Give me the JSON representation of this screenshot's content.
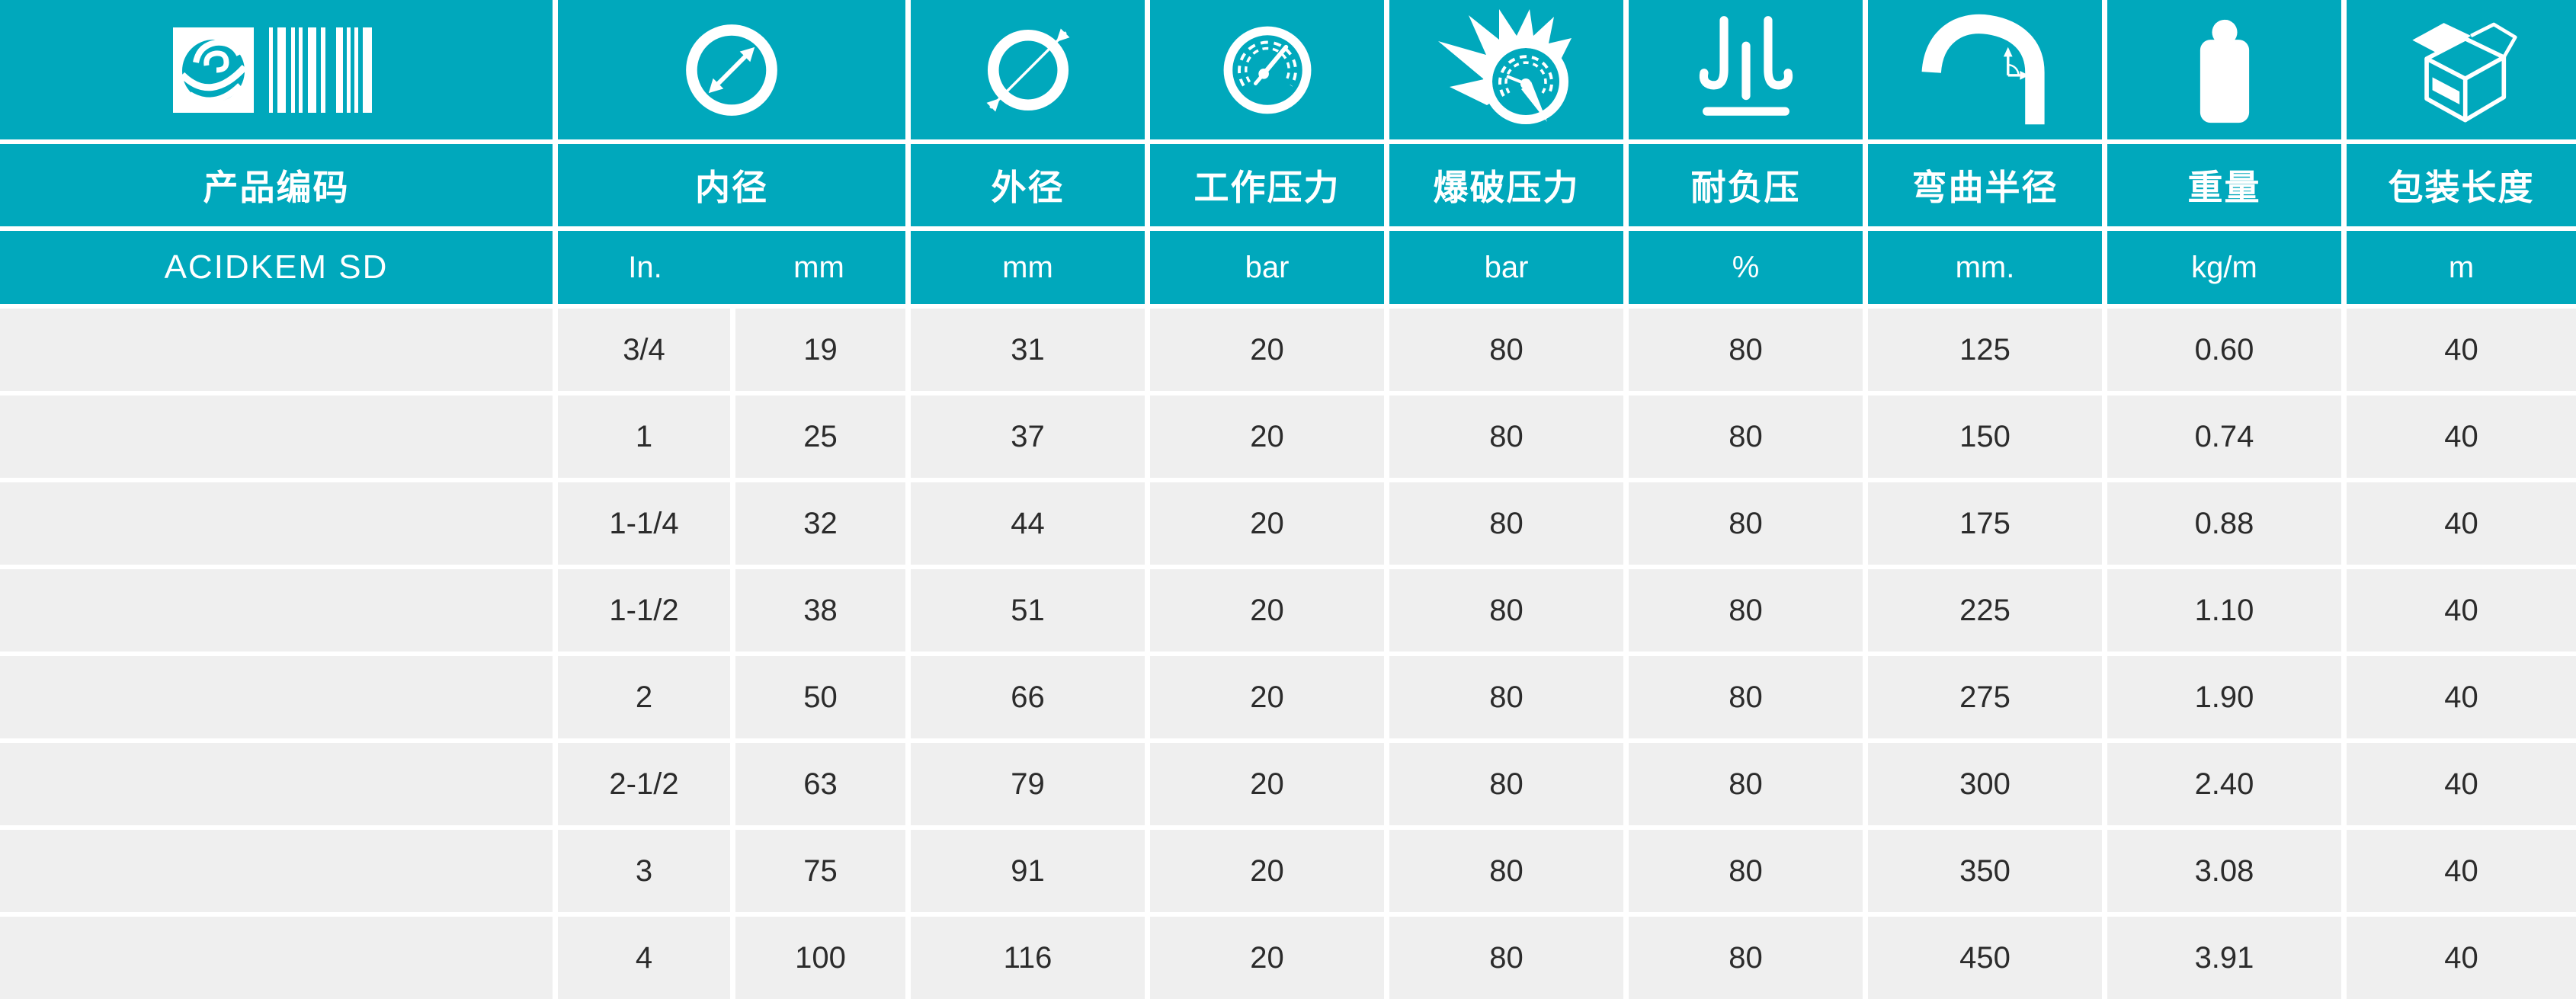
{
  "theme": {
    "teal": "#00A8BC",
    "row_gray": "#EFEFEF",
    "text_dark": "#2B2B2B",
    "text_light": "#FFFFFF"
  },
  "columns": [
    {
      "id": "product_code",
      "icon": "logo-barcode-icon",
      "header": "产品编码",
      "unit": "ACIDKEM SD"
    },
    {
      "id": "inner_diameter",
      "icon": "inner-diameter-icon",
      "header": "内径",
      "units": [
        "In.",
        "mm"
      ]
    },
    {
      "id": "outer_diameter",
      "icon": "outer-diameter-icon",
      "header": "外径",
      "unit": "mm"
    },
    {
      "id": "working_pressure",
      "icon": "working-pressure-gauge-icon",
      "header": "工作压力",
      "unit": "bar"
    },
    {
      "id": "burst_pressure",
      "icon": "burst-pressure-gauge-icon",
      "header": "爆破压力",
      "unit": "bar"
    },
    {
      "id": "vacuum_resistance",
      "icon": "vacuum-suction-icon",
      "header": "耐负压",
      "unit": "%"
    },
    {
      "id": "bend_radius",
      "icon": "bend-radius-icon",
      "header": "弯曲半径",
      "unit": "mm."
    },
    {
      "id": "weight",
      "icon": "weight-icon",
      "header": "重量",
      "unit": "kg/m"
    },
    {
      "id": "packing_length",
      "icon": "package-box-icon",
      "header": "包装长度",
      "unit": "m"
    }
  ],
  "row_keys": [
    "product_code",
    "in_inch",
    "in_mm",
    "out_mm",
    "working_bar",
    "burst_bar",
    "vacuum_pct",
    "bend_mm",
    "weight_kgm",
    "pack_m"
  ],
  "rows": [
    {
      "product_code": "",
      "in_inch": "3/4",
      "in_mm": "19",
      "out_mm": "31",
      "working_bar": "20",
      "burst_bar": "80",
      "vacuum_pct": "80",
      "bend_mm": "125",
      "weight_kgm": "0.60",
      "pack_m": "40"
    },
    {
      "product_code": "",
      "in_inch": "1",
      "in_mm": "25",
      "out_mm": "37",
      "working_bar": "20",
      "burst_bar": "80",
      "vacuum_pct": "80",
      "bend_mm": "150",
      "weight_kgm": "0.74",
      "pack_m": "40"
    },
    {
      "product_code": "",
      "in_inch": "1-1/4",
      "in_mm": "32",
      "out_mm": "44",
      "working_bar": "20",
      "burst_bar": "80",
      "vacuum_pct": "80",
      "bend_mm": "175",
      "weight_kgm": "0.88",
      "pack_m": "40"
    },
    {
      "product_code": "",
      "in_inch": "1-1/2",
      "in_mm": "38",
      "out_mm": "51",
      "working_bar": "20",
      "burst_bar": "80",
      "vacuum_pct": "80",
      "bend_mm": "225",
      "weight_kgm": "1.10",
      "pack_m": "40"
    },
    {
      "product_code": "",
      "in_inch": "2",
      "in_mm": "50",
      "out_mm": "66",
      "working_bar": "20",
      "burst_bar": "80",
      "vacuum_pct": "80",
      "bend_mm": "275",
      "weight_kgm": "1.90",
      "pack_m": "40"
    },
    {
      "product_code": "",
      "in_inch": "2-1/2",
      "in_mm": "63",
      "out_mm": "79",
      "working_bar": "20",
      "burst_bar": "80",
      "vacuum_pct": "80",
      "bend_mm": "300",
      "weight_kgm": "2.40",
      "pack_m": "40"
    },
    {
      "product_code": "",
      "in_inch": "3",
      "in_mm": "75",
      "out_mm": "91",
      "working_bar": "20",
      "burst_bar": "80",
      "vacuum_pct": "80",
      "bend_mm": "350",
      "weight_kgm": "3.08",
      "pack_m": "40"
    },
    {
      "product_code": "",
      "in_inch": "4",
      "in_mm": "100",
      "out_mm": "116",
      "working_bar": "20",
      "burst_bar": "80",
      "vacuum_pct": "80",
      "bend_mm": "450",
      "weight_kgm": "3.91",
      "pack_m": "40"
    }
  ]
}
